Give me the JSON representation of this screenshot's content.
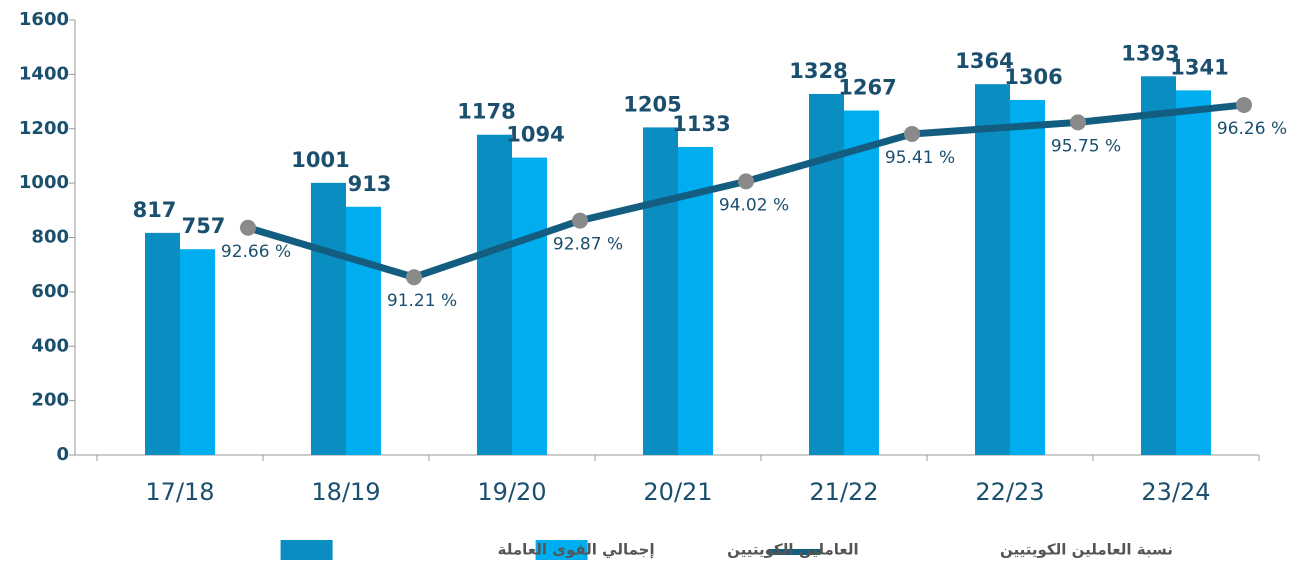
{
  "chart_data": {
    "type": "bar",
    "categories": [
      "17/18",
      "18/19",
      "19/20",
      "20/21",
      "21/22",
      "22/23",
      "23/24"
    ],
    "series": [
      {
        "name": "إجمالي القوى العاملة",
        "color": "#0a8ec2",
        "values": [
          817,
          1001,
          1178,
          1205,
          1328,
          1364,
          1393
        ]
      },
      {
        "name": "العاملين الكويتيين",
        "color": "#00adef",
        "values": [
          757,
          913,
          1094,
          1133,
          1267,
          1306,
          1341
        ]
      },
      {
        "name": "نسبة العاملين الكويتيين",
        "type": "line",
        "axis": "y2",
        "color": "#135e80",
        "values": [
          92.66,
          91.21,
          92.87,
          94.02,
          95.41,
          95.75,
          96.26
        ],
        "value_labels": [
          "92.66 %",
          "91.21 %",
          "92.87 %",
          "94.02 %",
          "95.41 %",
          "95.75 %",
          "96.26 %"
        ]
      }
    ],
    "ylim": [
      0,
      1600
    ],
    "yticks": [
      0,
      200,
      400,
      600,
      800,
      1000,
      1200,
      1400,
      1600
    ],
    "y2lim": [
      86,
      98.75
    ],
    "legend": "bottom"
  }
}
